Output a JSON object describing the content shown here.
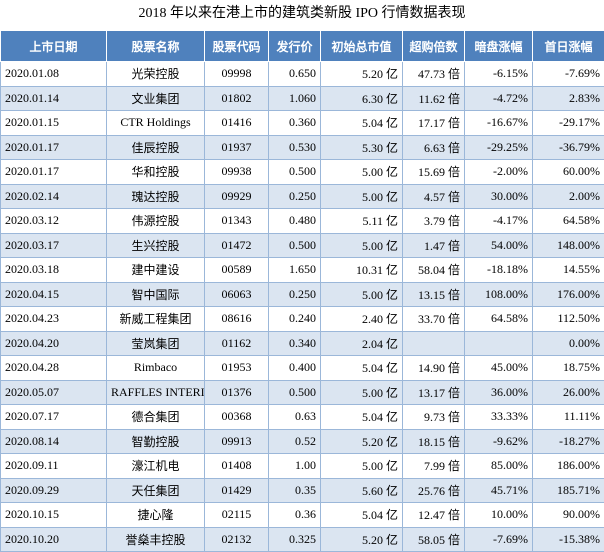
{
  "title": "2018 年以来在港上市的建筑类新股 IPO 行情数据表现",
  "table": {
    "header": [
      "上市日期",
      "股票名称",
      "股票代码",
      "发行价",
      "初始总市值",
      "超购倍数",
      "暗盘涨幅",
      "首日涨幅"
    ],
    "rows": [
      [
        "2020.01.08",
        "光荣控股",
        "09998",
        "0.650",
        "5.20 亿",
        "47.73 倍",
        "-6.15%",
        "-7.69%"
      ],
      [
        "2020.01.14",
        "文业集团",
        "01802",
        "1.060",
        "6.30 亿",
        "11.62 倍",
        "-4.72%",
        "2.83%"
      ],
      [
        "2020.01.15",
        "CTR Holdings",
        "01416",
        "0.360",
        "5.04 亿",
        "17.17 倍",
        "-16.67%",
        "-29.17%"
      ],
      [
        "2020.01.17",
        "佳辰控股",
        "01937",
        "0.530",
        "5.30 亿",
        "6.63 倍",
        "-29.25%",
        "-36.79%"
      ],
      [
        "2020.01.17",
        "华和控股",
        "09938",
        "0.500",
        "5.00 亿",
        "15.69 倍",
        "-2.00%",
        "60.00%"
      ],
      [
        "2020.02.14",
        "瑰达控股",
        "09929",
        "0.250",
        "5.00 亿",
        "4.57 倍",
        "30.00%",
        "2.00%"
      ],
      [
        "2020.03.12",
        "伟源控股",
        "01343",
        "0.480",
        "5.11 亿",
        "3.79 倍",
        "-4.17%",
        "64.58%"
      ],
      [
        "2020.03.17",
        "生兴控股",
        "01472",
        "0.500",
        "5.00 亿",
        "1.47 倍",
        "54.00%",
        "148.00%"
      ],
      [
        "2020.03.18",
        "建中建设",
        "00589",
        "1.650",
        "10.31 亿",
        "58.04 倍",
        "-18.18%",
        "14.55%"
      ],
      [
        "2020.04.15",
        "智中国际",
        "06063",
        "0.250",
        "5.00 亿",
        "13.15 倍",
        "108.00%",
        "176.00%"
      ],
      [
        "2020.04.23",
        "新威工程集团",
        "08616",
        "0.240",
        "2.40 亿",
        "33.70 倍",
        "64.58%",
        "112.50%"
      ],
      [
        "2020.04.20",
        "莹岚集团",
        "01162",
        "0.340",
        "2.04 亿",
        null,
        null,
        "0.00%"
      ],
      [
        "2020.04.28",
        "Rimbaco",
        "01953",
        "0.400",
        "5.04 亿",
        "14.90 倍",
        "45.00%",
        "18.75%"
      ],
      [
        "2020.05.07",
        "RAFFLES INTERIOR",
        "01376",
        "0.500",
        "5.00 亿",
        "13.17 倍",
        "36.00%",
        "26.00%"
      ],
      [
        "2020.07.17",
        "德合集团",
        "00368",
        "0.63",
        "5.04 亿",
        "9.73 倍",
        "33.33%",
        "11.11%"
      ],
      [
        "2020.08.14",
        "智勤控股",
        "09913",
        "0.52",
        "5.20 亿",
        "18.15 倍",
        "-9.62%",
        "-18.27%"
      ],
      [
        "2020.09.11",
        "濠江机电",
        "01408",
        "1.00",
        "5.00 亿",
        "7.99 倍",
        "85.00%",
        "186.00%"
      ],
      [
        "2020.09.29",
        "天任集团",
        "01429",
        "0.35",
        "5.60 亿",
        "25.76 倍",
        "45.71%",
        "185.71%"
      ],
      [
        "2020.10.15",
        "捷心隆",
        "02115",
        "0.36",
        "5.04 亿",
        "12.47 倍",
        "10.00%",
        "90.00%"
      ],
      [
        "2020.10.20",
        "誉燊丰控股",
        "02132",
        "0.325",
        "5.20 亿",
        "58.05 倍",
        "-7.69%",
        "-15.38%"
      ]
    ]
  }
}
